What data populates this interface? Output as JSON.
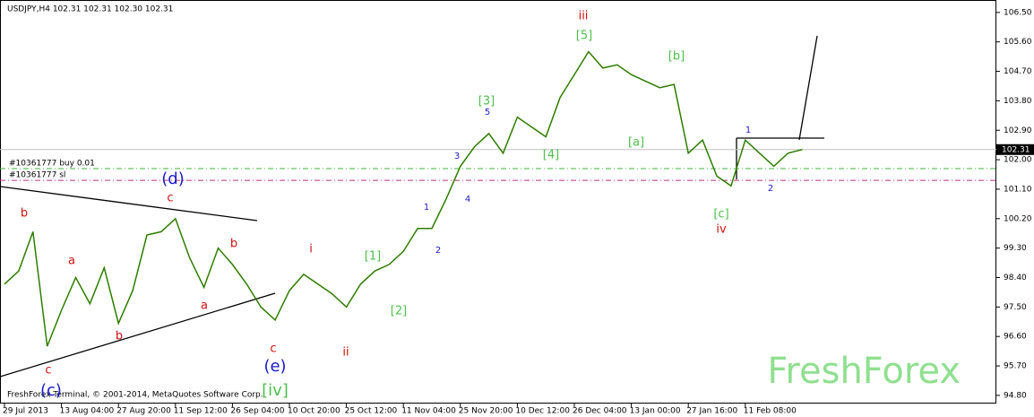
{
  "header": "USDJPY,H4  102.31 102.31 102.30 102.31",
  "copyright": "FreshForex Terminal, © 2001-2014, MetaQuotes Software Corp.",
  "watermark": "FreshForex",
  "chart_data": {
    "type": "line",
    "categories": [
      "29 Jul 2013",
      null,
      null,
      null,
      "13 Aug 04:00",
      null,
      null,
      null,
      "27 Aug 20:00",
      null,
      null,
      null,
      "11 Sep 12:00",
      null,
      null,
      null,
      "26 Sep 04:00",
      null,
      null,
      null,
      "10 Oct 20:00",
      null,
      null,
      null,
      "25 Oct 12:00",
      null,
      null,
      null,
      "11 Nov 04:00",
      null,
      null,
      null,
      "25 Nov 20:00",
      null,
      null,
      null,
      "10 Dec 12:00",
      null,
      null,
      null,
      "26 Dec 04:00",
      null,
      null,
      null,
      "13 Jan 00:00",
      null,
      null,
      null,
      "27 Jan 16:00",
      null,
      null,
      null,
      "11 Feb 08:00",
      null,
      null,
      null,
      null
    ],
    "series": [
      {
        "name": "USDJPY,H4",
        "color": "#2e7d00",
        "values": [
          98.2,
          98.6,
          99.8,
          96.3,
          97.4,
          98.4,
          97.6,
          98.7,
          97.0,
          98.0,
          99.7,
          99.8,
          100.2,
          99.0,
          98.1,
          99.3,
          98.8,
          98.2,
          97.5,
          97.1,
          98.0,
          98.5,
          98.2,
          97.9,
          97.5,
          98.2,
          98.6,
          98.8,
          99.2,
          99.9,
          99.9,
          100.8,
          101.8,
          102.4,
          102.8,
          102.2,
          103.3,
          103.0,
          102.7,
          103.9,
          104.6,
          105.3,
          104.8,
          104.9,
          104.6,
          104.4,
          104.2,
          104.3,
          102.2,
          102.6,
          101.5,
          101.2,
          102.6,
          102.2,
          101.8,
          102.2,
          102.31
        ]
      }
    ],
    "ylim": [
      94.55,
      106.88
    ],
    "yticks": [
      {
        "value": 106.5,
        "label": "106.50"
      },
      {
        "value": 105.6,
        "label": "105.60"
      },
      {
        "value": 104.7,
        "label": "104.70"
      },
      {
        "value": 103.8,
        "label": "103.80"
      },
      {
        "value": 102.9,
        "label": "102.90"
      },
      {
        "value": 102.0,
        "label": "102.00"
      },
      {
        "value": 101.1,
        "label": "101.10"
      },
      {
        "value": 100.2,
        "label": "100.20"
      },
      {
        "value": 99.3,
        "label": "99.30"
      },
      {
        "value": 98.4,
        "label": "98.40"
      },
      {
        "value": 97.5,
        "label": "97.50"
      },
      {
        "value": 96.6,
        "label": "96.60"
      },
      {
        "value": 95.7,
        "label": "95.70"
      },
      {
        "value": 94.8,
        "label": "94.80"
      }
    ],
    "current_price": 102.31,
    "order_lines": [
      {
        "label": "#10361777 buy 0.01",
        "value": 101.73
      },
      {
        "label": "#10361777 sl",
        "value": 101.37
      }
    ],
    "annotations": [
      "(c)",
      "c",
      "b",
      "a",
      "b",
      "(d)",
      "c",
      "a",
      "b",
      "c",
      "(e)",
      "[iv]",
      "i",
      "ii",
      "[1]",
      "[2]",
      "1",
      "2",
      "3",
      "4",
      "[3]",
      "5",
      "[4]",
      "iii",
      "[5]",
      "[a]",
      "[b]",
      "[c]",
      "iv",
      "1",
      "2"
    ]
  }
}
